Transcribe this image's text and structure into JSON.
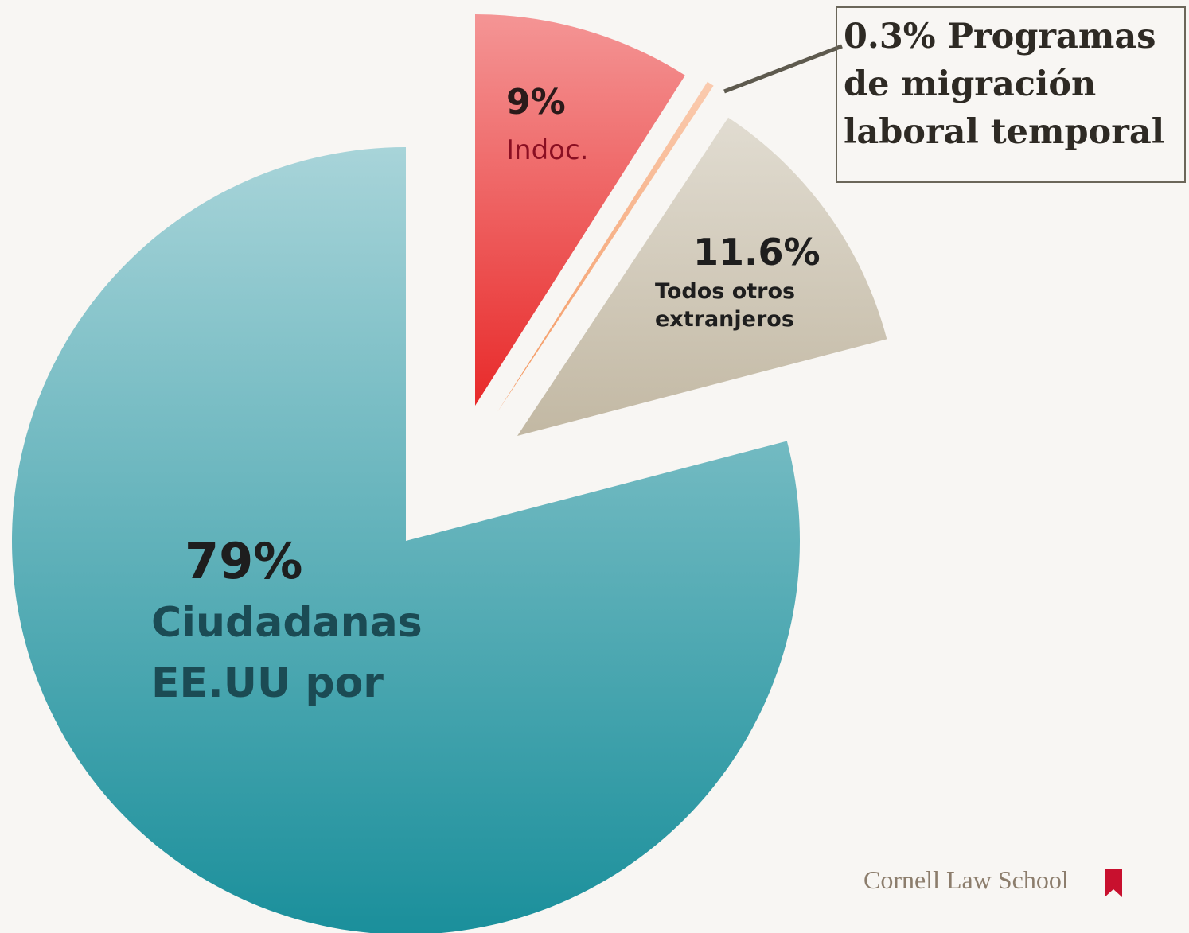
{
  "chart_data": {
    "type": "pie",
    "categories": [
      "Ciudadanas EE.UU por",
      "Indoc.",
      "Programas de migración laboral temporal",
      "Todos otros extranjeros"
    ],
    "values": [
      79,
      9,
      0.3,
      11.6
    ],
    "value_labels": [
      "79%",
      "9%",
      "0.3%",
      "11.6%"
    ],
    "colors": [
      "#1a8f9b",
      "#e82a2a",
      "#f4975f",
      "#c2b8a3"
    ],
    "footer": "Cornell Law School"
  }
}
